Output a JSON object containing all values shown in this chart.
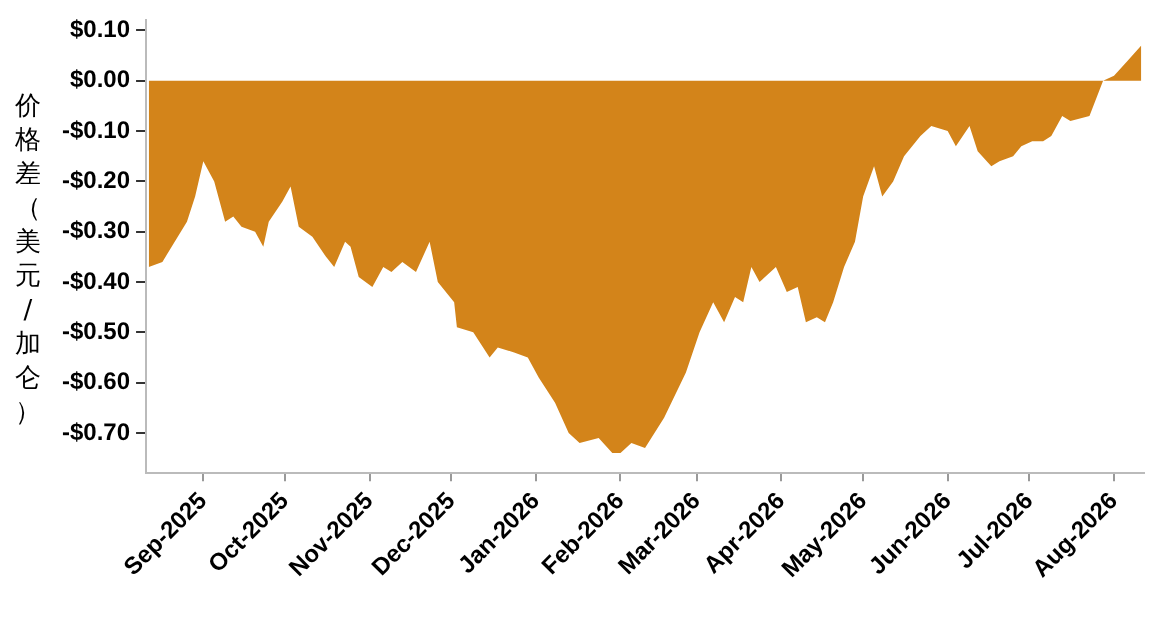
{
  "chart_data": {
    "type": "area",
    "ylabel": "价格差（美元/加仑）",
    "x": [
      "2025-08-12",
      "2025-08-17",
      "2025-08-26",
      "2025-08-29",
      "2025-09-01",
      "2025-09-05",
      "2025-09-09",
      "2025-09-12",
      "2025-09-15",
      "2025-09-20",
      "2025-09-23",
      "2025-09-25",
      "2025-09-30",
      "2025-10-03",
      "2025-10-06",
      "2025-10-11",
      "2025-10-16",
      "2025-10-19",
      "2025-10-23",
      "2025-10-25",
      "2025-10-28",
      "2025-11-02",
      "2025-11-06",
      "2025-11-09",
      "2025-11-13",
      "2025-11-18",
      "2025-11-23",
      "2025-11-26",
      "2025-12-02",
      "2025-12-03",
      "2025-12-09",
      "2025-12-15",
      "2025-12-18",
      "2025-12-24",
      "2025-12-29",
      "2026-01-02",
      "2026-01-08",
      "2026-01-13",
      "2026-01-17",
      "2026-01-24",
      "2026-01-29",
      "2026-02-01",
      "2026-02-05",
      "2026-02-10",
      "2026-02-17",
      "2026-02-25",
      "2026-03-02",
      "2026-03-07",
      "2026-03-11",
      "2026-03-15",
      "2026-03-18",
      "2026-03-21",
      "2026-03-24",
      "2026-03-30",
      "2026-04-03",
      "2026-04-07",
      "2026-04-10",
      "2026-04-14",
      "2026-04-17",
      "2026-04-20",
      "2026-04-24",
      "2026-04-28",
      "2026-05-01",
      "2026-05-05",
      "2026-05-08",
      "2026-05-12",
      "2026-05-16",
      "2026-05-22",
      "2026-05-26",
      "2026-06-01",
      "2026-06-04",
      "2026-06-09",
      "2026-06-12",
      "2026-06-17",
      "2026-06-20",
      "2026-06-25",
      "2026-06-28",
      "2026-07-02",
      "2026-07-06",
      "2026-07-09",
      "2026-07-13",
      "2026-07-16",
      "2026-07-23",
      "2026-07-28",
      "2026-08-01",
      "2026-08-06",
      "2026-08-11"
    ],
    "series": [
      {
        "color": "#d3841a",
        "values": [
          -0.37,
          -0.36,
          -0.28,
          -0.23,
          -0.16,
          -0.2,
          -0.28,
          -0.27,
          -0.29,
          -0.3,
          -0.33,
          -0.28,
          -0.24,
          -0.21,
          -0.29,
          -0.31,
          -0.35,
          -0.37,
          -0.32,
          -0.33,
          -0.39,
          -0.41,
          -0.37,
          -0.38,
          -0.36,
          -0.38,
          -0.32,
          -0.4,
          -0.44,
          -0.49,
          -0.5,
          -0.55,
          -0.53,
          -0.54,
          -0.55,
          -0.59,
          -0.64,
          -0.7,
          -0.72,
          -0.71,
          -0.74,
          -0.74,
          -0.72,
          -0.73,
          -0.67,
          -0.58,
          -0.5,
          -0.44,
          -0.48,
          -0.43,
          -0.44,
          -0.37,
          -0.4,
          -0.37,
          -0.42,
          -0.41,
          -0.48,
          -0.47,
          -0.48,
          -0.44,
          -0.37,
          -0.32,
          -0.23,
          -0.17,
          -0.23,
          -0.2,
          -0.15,
          -0.11,
          -0.09,
          -0.1,
          -0.13,
          -0.09,
          -0.14,
          -0.17,
          -0.16,
          -0.15,
          -0.13,
          -0.12,
          -0.12,
          -0.11,
          -0.07,
          -0.08,
          -0.07,
          0.0,
          0.01,
          0.04,
          0.07
        ]
      }
    ],
    "xlim": [
      "2025-08-11",
      "2026-08-12"
    ],
    "xticks": [
      {
        "value": "2025-09-01",
        "label": "Sep-2025"
      },
      {
        "value": "2025-10-01",
        "label": "Oct-2025"
      },
      {
        "value": "2025-11-01",
        "label": "Nov-2025"
      },
      {
        "value": "2025-12-01",
        "label": "Dec-2025"
      },
      {
        "value": "2026-01-01",
        "label": "Jan-2026"
      },
      {
        "value": "2026-02-01",
        "label": "Feb-2026"
      },
      {
        "value": "2026-03-01",
        "label": "Mar-2026"
      },
      {
        "value": "2026-04-01",
        "label": "Apr-2026"
      },
      {
        "value": "2026-05-01",
        "label": "May-2026"
      },
      {
        "value": "2026-06-01",
        "label": "Jun-2026"
      },
      {
        "value": "2026-07-01",
        "label": "Jul-2026"
      },
      {
        "value": "2026-08-01",
        "label": "Aug-2026"
      }
    ],
    "ylim": [
      -0.78,
      0.12
    ],
    "yticks": [
      {
        "value": 0.1,
        "label": "$0.10"
      },
      {
        "value": 0,
        "label": "$0.00"
      },
      {
        "value": -0.1,
        "label": "-$0.10"
      },
      {
        "value": -0.2,
        "label": "-$0.20"
      },
      {
        "value": -0.3,
        "label": "-$0.30"
      },
      {
        "value": -0.4,
        "label": "-$0.40"
      },
      {
        "value": -0.5,
        "label": "-$0.50"
      },
      {
        "value": -0.6,
        "label": "-$0.60"
      },
      {
        "value": -0.7,
        "label": "-$0.70"
      }
    ],
    "grid": false,
    "legend": false,
    "marker": "none"
  }
}
